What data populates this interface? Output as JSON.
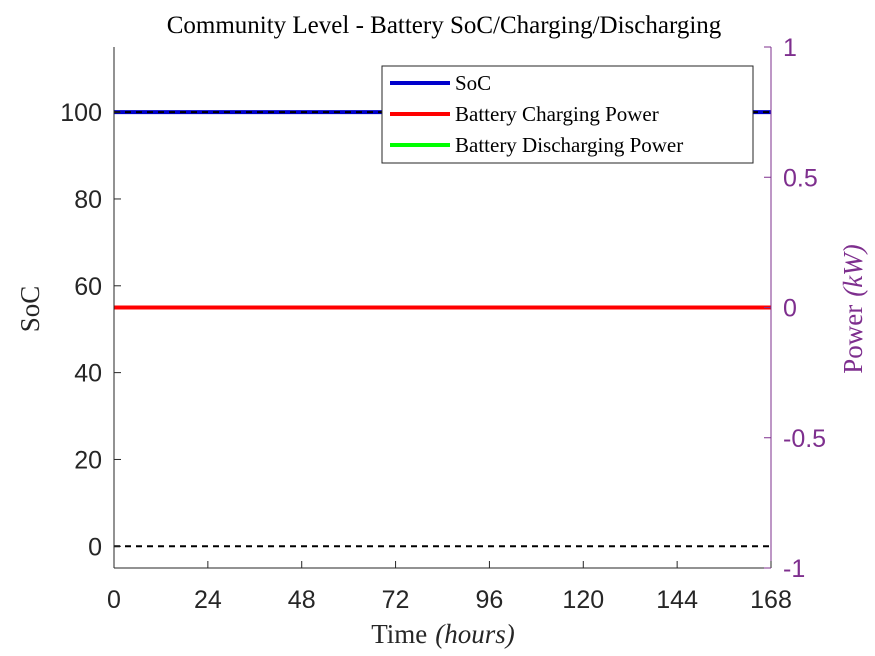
{
  "chart_data": {
    "type": "line",
    "title": "Community Level - Battery SoC/Charging/Discharging",
    "xlabel": "Time",
    "xlabel_math": "(hours)",
    "ylabel_left": "SoC",
    "ylabel_right": "Power",
    "ylabel_right_math": "(kW)",
    "xlim": [
      0,
      168
    ],
    "ylim_left": [
      -5,
      115
    ],
    "ylim_right": [
      -1,
      1
    ],
    "xticks": [
      0,
      24,
      48,
      72,
      96,
      120,
      144,
      168
    ],
    "yticks_left": [
      0,
      20,
      40,
      60,
      80,
      100
    ],
    "yticks_right": [
      -1,
      -0.5,
      0,
      0.5,
      1
    ],
    "ytick_labels_right": [
      "-1",
      "-0.5",
      "0",
      "0.5",
      "1"
    ],
    "grid": false,
    "legend_position": "top-right",
    "right_axis_color": "#7E2F8E",
    "series": [
      {
        "name": "SoC",
        "axis": "left",
        "color": "#0000CC",
        "x": [
          0,
          168
        ],
        "y": [
          100,
          100
        ]
      },
      {
        "name": "Battery Charging Power",
        "axis": "right",
        "color": "#FF0000",
        "x": [
          0,
          168
        ],
        "y": [
          0,
          0
        ]
      },
      {
        "name": "Battery Discharging Power",
        "axis": "right",
        "color": "#00FF00",
        "x": [
          0,
          168
        ],
        "y": [
          0,
          0
        ]
      }
    ],
    "reference_lines": [
      {
        "axis": "left",
        "y": 100,
        "style": "dashed",
        "color": "#000000"
      },
      {
        "axis": "left",
        "y": 0,
        "style": "dashed",
        "color": "#000000"
      }
    ]
  }
}
